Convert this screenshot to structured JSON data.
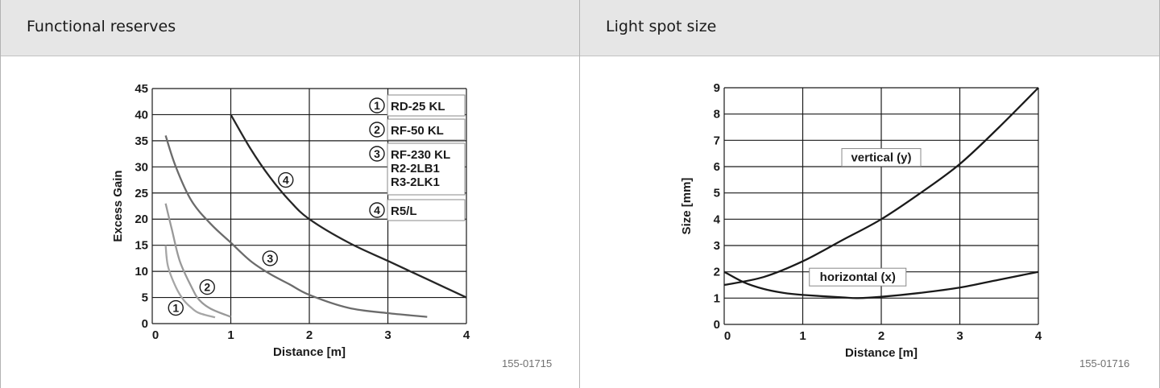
{
  "panels": {
    "left": {
      "title": "Functional reserves",
      "figure_id": "155-01715"
    },
    "right": {
      "title": "Light spot size",
      "figure_id": "155-01716"
    }
  },
  "chart_data": [
    {
      "type": "line",
      "title": "Functional reserves",
      "xlabel": "Distance [m]",
      "ylabel": "Excess Gain",
      "xlim": [
        0,
        4
      ],
      "ylim": [
        0,
        45
      ],
      "xticks": [
        0,
        1,
        2,
        3,
        4
      ],
      "yticks": [
        0,
        5,
        10,
        15,
        20,
        25,
        30,
        35,
        40,
        45
      ],
      "grid": true,
      "legend_position": "top-right",
      "colors": {
        "grid": "#1a1a1a",
        "axis": "#1a1a1a",
        "s1": "#a6a6a6",
        "s2": "#999999",
        "s3": "#6b6b6b",
        "s4": "#262626"
      },
      "series": [
        {
          "name": "1",
          "x": [
            0.17,
            0.2,
            0.3,
            0.4,
            0.5,
            0.6,
            0.8
          ],
          "y": [
            15,
            11,
            7,
            4.5,
            3,
            2,
            1.2
          ]
        },
        {
          "name": "2",
          "x": [
            0.17,
            0.25,
            0.35,
            0.5,
            0.6,
            0.75,
            1.0
          ],
          "y": [
            23,
            18,
            12,
            7,
            4.5,
            2.8,
            1.3
          ]
        },
        {
          "name": "3",
          "x": [
            0.17,
            0.3,
            0.5,
            0.75,
            1.0,
            1.25,
            1.5,
            1.75,
            2.0,
            2.5,
            3.0,
            3.5
          ],
          "y": [
            36,
            30,
            23.5,
            19,
            15.5,
            12,
            9.5,
            7.5,
            5.5,
            3,
            2,
            1.3
          ]
        },
        {
          "name": "4",
          "x": [
            1.0,
            1.25,
            1.5,
            1.75,
            2.0,
            2.5,
            3.0,
            3.5,
            4.0
          ],
          "y": [
            40,
            33.5,
            28,
            23.5,
            20,
            15.5,
            12,
            8.5,
            5
          ]
        }
      ],
      "series_labels": [
        {
          "num": "1",
          "x": 0.3,
          "y": 3
        },
        {
          "num": "2",
          "x": 0.7,
          "y": 7
        },
        {
          "num": "3",
          "x": 1.5,
          "y": 12.5
        },
        {
          "num": "4",
          "x": 1.7,
          "y": 27.5
        }
      ],
      "legend": [
        {
          "num": "1",
          "lines": [
            "RD-25 KL"
          ]
        },
        {
          "num": "2",
          "lines": [
            "RF-50 KL"
          ]
        },
        {
          "num": "3",
          "lines": [
            "RF-230 KL",
            "R2-2LB1",
            "R3-2LK1"
          ]
        },
        {
          "num": "4",
          "lines": [
            "R5/L"
          ]
        }
      ]
    },
    {
      "type": "line",
      "title": "Light spot size",
      "xlabel": "Distance [m]",
      "ylabel": "Size [mm]",
      "xlim": [
        0,
        4
      ],
      "ylim": [
        0,
        9
      ],
      "xticks": [
        0,
        1,
        2,
        3,
        4
      ],
      "yticks": [
        0,
        1,
        2,
        3,
        4,
        5,
        6,
        7,
        8,
        9
      ],
      "grid": true,
      "colors": {
        "grid": "#1a1a1a",
        "axis": "#1a1a1a",
        "line": "#1a1a1a"
      },
      "series": [
        {
          "name": "vertical (y)",
          "x": [
            0,
            0.5,
            1.0,
            1.5,
            2.0,
            2.5,
            3.0,
            3.5,
            4.0
          ],
          "y": [
            1.5,
            1.8,
            2.4,
            3.2,
            4.0,
            5.0,
            6.1,
            7.5,
            9.0
          ]
        },
        {
          "name": "horizontal (x)",
          "x": [
            0,
            0.25,
            0.5,
            0.75,
            1.0,
            1.5,
            1.7,
            2.0,
            2.5,
            3.0,
            3.5,
            4.0
          ],
          "y": [
            2.0,
            1.6,
            1.35,
            1.2,
            1.12,
            1.03,
            1.0,
            1.05,
            1.2,
            1.4,
            1.7,
            2.0
          ]
        }
      ],
      "annotations": [
        {
          "text": "vertical (y)",
          "x": 2.0,
          "y": 6.35
        },
        {
          "text": "horizontal (x)",
          "x": 1.7,
          "y": 1.8
        }
      ]
    }
  ]
}
